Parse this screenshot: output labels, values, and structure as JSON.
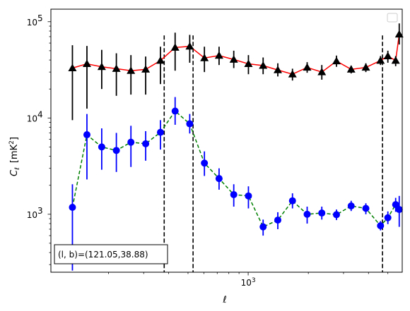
{
  "chart_data": {
    "type": "line",
    "xscale": "log",
    "yscale": "log",
    "xlim": [
      103,
      5900
    ],
    "ylim": [
      250,
      135000
    ],
    "xlabel": "ℓ",
    "ylabel_main": "C",
    "ylabel_sub": "ℓ",
    "ylabel_unit": "[mK",
    "ylabel_unit_sup": "2",
    "ylabel_unit_close": "]",
    "title": "",
    "grid": false,
    "legend": "top-right",
    "x_major_ticks": [
      {
        "value": 1000,
        "base": "10",
        "exp": "3"
      }
    ],
    "x_minor_ticks": [
      200,
      300,
      400,
      500,
      600,
      700,
      800,
      900,
      2000,
      3000,
      4000,
      5000
    ],
    "y_major_ticks": [
      {
        "value": 1000,
        "base": "10",
        "exp": "3"
      },
      {
        "value": 10000,
        "base": "10",
        "exp": "4"
      },
      {
        "value": 100000,
        "base": "10",
        "exp": "5"
      }
    ],
    "y_minor_ticks": [
      300,
      400,
      500,
      600,
      700,
      800,
      900,
      2000,
      3000,
      4000,
      5000,
      6000,
      7000,
      8000,
      9000,
      20000,
      30000,
      40000,
      50000,
      60000,
      70000,
      80000,
      90000
    ],
    "vlines": [
      380,
      530,
      4700
    ],
    "annotation": "(l, b)=(121.05,38.88)",
    "series": [
      {
        "color": "#000000",
        "line_color": "#ff0000",
        "linestyle": "solid",
        "marker": "triangle",
        "points": [
          {
            "x": 132,
            "y": 33000,
            "ylo": 9500,
            "yhi": 57000
          },
          {
            "x": 156,
            "y": 36500,
            "ylo": 12500,
            "yhi": 56000
          },
          {
            "x": 185,
            "y": 34000,
            "ylo": 20000,
            "yhi": 51000
          },
          {
            "x": 219,
            "y": 32500,
            "ylo": 17000,
            "yhi": 47000
          },
          {
            "x": 259,
            "y": 31000,
            "ylo": 17500,
            "yhi": 45000
          },
          {
            "x": 307,
            "y": 32000,
            "ylo": 17500,
            "yhi": 43500
          },
          {
            "x": 364,
            "y": 39500,
            "ylo": 22500,
            "yhi": 55000
          },
          {
            "x": 431,
            "y": 54000,
            "ylo": 31000,
            "yhi": 77000
          },
          {
            "x": 510,
            "y": 55500,
            "ylo": 37500,
            "yhi": 73000
          },
          {
            "x": 604,
            "y": 42000,
            "ylo": 30000,
            "yhi": 55000
          },
          {
            "x": 715,
            "y": 44500,
            "ylo": 35500,
            "yhi": 55000
          },
          {
            "x": 847,
            "y": 40500,
            "ylo": 33000,
            "yhi": 50000
          },
          {
            "x": 1003,
            "y": 36500,
            "ylo": 28500,
            "yhi": 45000
          },
          {
            "x": 1188,
            "y": 35000,
            "ylo": 28500,
            "yhi": 42500
          },
          {
            "x": 1407,
            "y": 31500,
            "ylo": 27000,
            "yhi": 37000
          },
          {
            "x": 1666,
            "y": 28500,
            "ylo": 24500,
            "yhi": 32500
          },
          {
            "x": 1973,
            "y": 33500,
            "ylo": 29500,
            "yhi": 38000
          },
          {
            "x": 2336,
            "y": 30000,
            "ylo": 25000,
            "yhi": 35500
          },
          {
            "x": 2766,
            "y": 39000,
            "ylo": 34000,
            "yhi": 44500
          },
          {
            "x": 3276,
            "y": 32000,
            "ylo": 29000,
            "yhi": 35000
          },
          {
            "x": 3880,
            "y": 33500,
            "ylo": 30000,
            "yhi": 37000
          },
          {
            "x": 4594,
            "y": 39500,
            "ylo": 35500,
            "yhi": 44000
          },
          {
            "x": 5000,
            "y": 44000,
            "ylo": 37500,
            "yhi": 50000
          },
          {
            "x": 5470,
            "y": 39500,
            "ylo": 34500,
            "yhi": 44000
          },
          {
            "x": 5700,
            "y": 74000,
            "ylo": 58000,
            "yhi": 96000
          }
        ]
      },
      {
        "color": "#0000ff",
        "line_color": "#008000",
        "linestyle": "dashed",
        "marker": "circle",
        "points": [
          {
            "x": 132,
            "y": 1180,
            "ylo": 260,
            "yhi": 2050
          },
          {
            "x": 156,
            "y": 6700,
            "ylo": 2300,
            "yhi": 11000
          },
          {
            "x": 185,
            "y": 5000,
            "ylo": 2900,
            "yhi": 7800
          },
          {
            "x": 219,
            "y": 4600,
            "ylo": 2750,
            "yhi": 7000
          },
          {
            "x": 259,
            "y": 5600,
            "ylo": 3100,
            "yhi": 8300
          },
          {
            "x": 307,
            "y": 5400,
            "ylo": 3600,
            "yhi": 7300
          },
          {
            "x": 364,
            "y": 7100,
            "ylo": 4700,
            "yhi": 9500
          },
          {
            "x": 431,
            "y": 11800,
            "ylo": 8500,
            "yhi": 16500
          },
          {
            "x": 510,
            "y": 8700,
            "ylo": 6900,
            "yhi": 11000
          },
          {
            "x": 604,
            "y": 3400,
            "ylo": 2500,
            "yhi": 4500
          },
          {
            "x": 715,
            "y": 2350,
            "ylo": 1800,
            "yhi": 3000
          },
          {
            "x": 847,
            "y": 1600,
            "ylo": 1200,
            "yhi": 2050
          },
          {
            "x": 1003,
            "y": 1550,
            "ylo": 1150,
            "yhi": 1950
          },
          {
            "x": 1188,
            "y": 740,
            "ylo": 600,
            "yhi": 880
          },
          {
            "x": 1407,
            "y": 870,
            "ylo": 700,
            "yhi": 1050
          },
          {
            "x": 1666,
            "y": 1380,
            "ylo": 1150,
            "yhi": 1650
          },
          {
            "x": 1973,
            "y": 1000,
            "ylo": 800,
            "yhi": 1200
          },
          {
            "x": 2336,
            "y": 1030,
            "ylo": 880,
            "yhi": 1200
          },
          {
            "x": 2766,
            "y": 990,
            "ylo": 870,
            "yhi": 1120
          },
          {
            "x": 3276,
            "y": 1220,
            "ylo": 1080,
            "yhi": 1380
          },
          {
            "x": 3880,
            "y": 1150,
            "ylo": 1000,
            "yhi": 1300
          },
          {
            "x": 4594,
            "y": 760,
            "ylo": 680,
            "yhi": 850
          },
          {
            "x": 5000,
            "y": 920,
            "ylo": 790,
            "yhi": 1070
          },
          {
            "x": 5470,
            "y": 1260,
            "ylo": 1060,
            "yhi": 1480
          },
          {
            "x": 5700,
            "y": 1120,
            "ylo": 740,
            "yhi": 1550
          }
        ]
      }
    ]
  }
}
